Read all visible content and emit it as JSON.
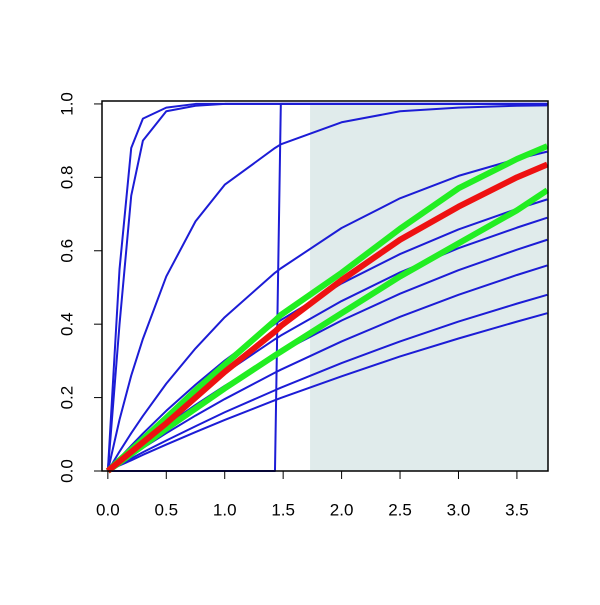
{
  "chart_data": {
    "type": "line",
    "x": [
      0,
      0.1,
      0.2,
      0.3,
      0.5,
      0.75,
      1,
      1.43,
      1.48,
      2,
      2.5,
      3,
      3.5,
      3.76
    ],
    "series": [
      {
        "color": "#1c1cd6",
        "width": 2,
        "values": [
          0,
          0.55,
          0.88,
          0.96,
          0.99,
          1,
          1,
          1,
          1,
          1,
          1,
          1,
          1,
          1
        ]
      },
      {
        "color": "#1c1cd6",
        "width": 2,
        "values": [
          0,
          0.4,
          0.75,
          0.9,
          0.98,
          0.995,
          1,
          1,
          1,
          1,
          1,
          1,
          1,
          1
        ]
      },
      {
        "color": "#1c1cd6",
        "width": 2,
        "values": [
          0,
          0.14,
          0.26,
          0.36,
          0.53,
          0.68,
          0.78,
          0.88,
          0.89,
          0.95,
          0.98,
          0.99,
          0.995,
          0.996
        ]
      },
      {
        "color": "#1c1cd6",
        "width": 2,
        "values": [
          0,
          0,
          0,
          0,
          0,
          0,
          0,
          0,
          1,
          1,
          1,
          1,
          1,
          1
        ]
      },
      {
        "color": "#1c1cd6",
        "width": 2,
        "values": [
          0,
          0.053,
          0.103,
          0.15,
          0.238,
          0.334,
          0.419,
          0.54,
          0.552,
          0.662,
          0.743,
          0.804,
          0.85,
          0.87
        ]
      },
      {
        "color": "#1c1cd6",
        "width": 2,
        "values": [
          0,
          0.035,
          0.069,
          0.102,
          0.164,
          0.235,
          0.301,
          0.401,
          0.411,
          0.511,
          0.591,
          0.658,
          0.714,
          0.74
        ]
      },
      {
        "color": "#1c1cd6",
        "width": 2,
        "values": [
          0,
          0.031,
          0.06,
          0.089,
          0.144,
          0.208,
          0.267,
          0.359,
          0.369,
          0.463,
          0.541,
          0.607,
          0.663,
          0.69
        ]
      },
      {
        "color": "#1c1cd6",
        "width": 2,
        "values": [
          0,
          0.026,
          0.051,
          0.076,
          0.124,
          0.18,
          0.232,
          0.314,
          0.324,
          0.41,
          0.483,
          0.547,
          0.603,
          0.63
        ]
      },
      {
        "color": "#1c1cd6",
        "width": 2,
        "values": [
          0,
          0.022,
          0.043,
          0.063,
          0.103,
          0.151,
          0.196,
          0.268,
          0.276,
          0.353,
          0.42,
          0.48,
          0.534,
          0.56
        ]
      },
      {
        "color": "#1c1cd6",
        "width": 2,
        "values": [
          0,
          0.017,
          0.034,
          0.051,
          0.083,
          0.122,
          0.16,
          0.22,
          0.227,
          0.294,
          0.353,
          0.407,
          0.456,
          0.48
        ]
      },
      {
        "color": "#1c1cd6",
        "width": 2,
        "values": [
          0,
          0.015,
          0.029,
          0.044,
          0.072,
          0.106,
          0.139,
          0.193,
          0.199,
          0.258,
          0.312,
          0.361,
          0.407,
          0.43
        ]
      },
      {
        "color": "#22ee22",
        "width": 6,
        "values": [
          0,
          0.03,
          0.058,
          0.087,
          0.145,
          0.22,
          0.29,
          0.41,
          0.425,
          0.54,
          0.66,
          0.77,
          0.85,
          0.885
        ]
      },
      {
        "color": "#22ee22",
        "width": 6,
        "values": [
          0,
          0.023,
          0.046,
          0.069,
          0.115,
          0.17,
          0.225,
          0.315,
          0.325,
          0.43,
          0.53,
          0.62,
          0.71,
          0.765
        ]
      },
      {
        "color": "#ee1111",
        "width": 6,
        "values": [
          0,
          0.026,
          0.052,
          0.078,
          0.13,
          0.2,
          0.27,
          0.38,
          0.395,
          0.52,
          0.63,
          0.72,
          0.8,
          0.835
        ]
      }
    ],
    "shaded_region": {
      "x": [
        1.73,
        3.766
      ],
      "y": [
        0,
        1
      ],
      "color": "#e0ebeb"
    },
    "xlim": [
      -0.05,
      3.766
    ],
    "ylim": [
      0,
      1.008
    ],
    "xticks": [
      {
        "value": 0,
        "label": "0.0"
      },
      0.5,
      {
        "value": 1,
        "label": "1.0"
      },
      1.5,
      {
        "value": 2,
        "label": "2.0"
      },
      2.5,
      {
        "value": 3,
        "label": "3.0"
      },
      3.5
    ],
    "yticks": [
      {
        "value": 0,
        "label": "0.0"
      },
      0.2,
      0.4,
      0.6,
      0.8,
      {
        "value": 1,
        "label": "1.0"
      }
    ]
  }
}
